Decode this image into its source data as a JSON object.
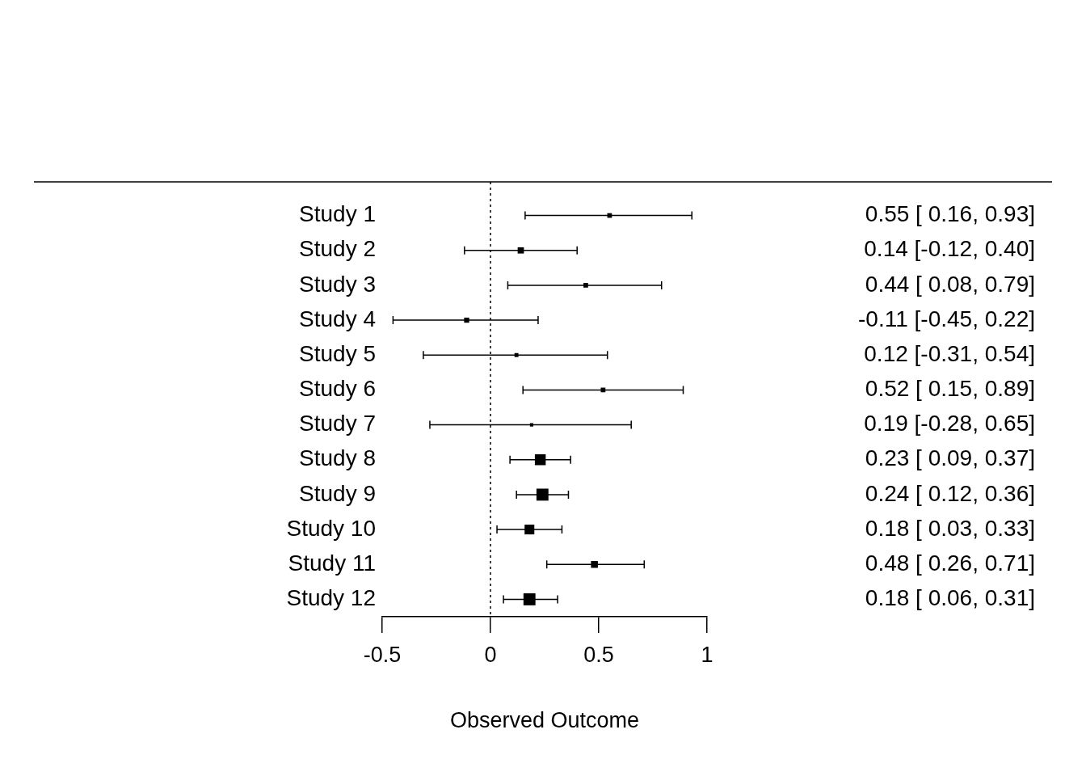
{
  "chart_data": {
    "type": "scatter",
    "orientation": "horizontal",
    "xlabel": "Observed Outcome",
    "categories": [
      "Study 1",
      "Study 2",
      "Study 3",
      "Study 4",
      "Study 5",
      "Study 6",
      "Study 7",
      "Study 8",
      "Study 9",
      "Study 10",
      "Study 11",
      "Study 12"
    ],
    "values": [
      0.55,
      0.14,
      0.44,
      -0.11,
      0.12,
      0.52,
      0.19,
      0.23,
      0.24,
      0.18,
      0.48,
      0.18
    ],
    "errors": [
      [
        0.16,
        0.93
      ],
      [
        -0.12,
        0.4
      ],
      [
        0.08,
        0.79
      ],
      [
        -0.45,
        0.22
      ],
      [
        -0.31,
        0.54
      ],
      [
        0.15,
        0.89
      ],
      [
        -0.28,
        0.65
      ],
      [
        0.09,
        0.37
      ],
      [
        0.12,
        0.36
      ],
      [
        0.03,
        0.33
      ],
      [
        0.26,
        0.71
      ],
      [
        0.06,
        0.31
      ]
    ],
    "sizes": [
      0.15,
      0.27,
      0.15,
      0.18,
      0.11,
      0.15,
      0.08,
      0.82,
      1,
      0.66,
      0.33,
      1
    ],
    "value_labels": [
      "0.55 [ 0.16, 0.93]",
      "0.14 [-0.12, 0.40]",
      "0.44 [ 0.08, 0.79]",
      "-0.11 [-0.45, 0.22]",
      "0.12 [-0.31, 0.54]",
      "0.52 [ 0.15, 0.89]",
      "0.19 [-0.28, 0.65]",
      "0.23 [ 0.09, 0.37]",
      "0.24 [ 0.12, 0.36]",
      "0.18 [ 0.03, 0.33]",
      "0.48 [ 0.26, 0.71]",
      "0.18 [ 0.06, 0.31]"
    ],
    "color": "#000000",
    "marker": "square",
    "xlim": [
      -0.5,
      1
    ],
    "xticks": [
      -0.5,
      0,
      0.5,
      1
    ],
    "ref_lines": [
      {
        "axis": "x",
        "value": 0,
        "line_style": "dotted",
        "color": "#000000"
      }
    ],
    "grid": false,
    "legend": false
  }
}
